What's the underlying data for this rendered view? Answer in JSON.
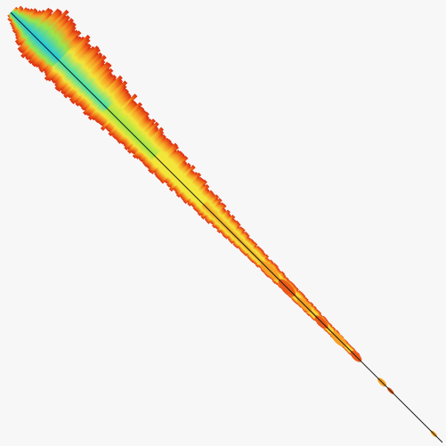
{
  "image": {
    "background": "#f7f7f7",
    "diagonal_line_color": "#1a1a1a",
    "colormap": [
      "#1ec8e6",
      "#3ee0b0",
      "#9ae64a",
      "#f2e63a",
      "#f6a024",
      "#ec5a18",
      "#d82a10"
    ]
  }
}
